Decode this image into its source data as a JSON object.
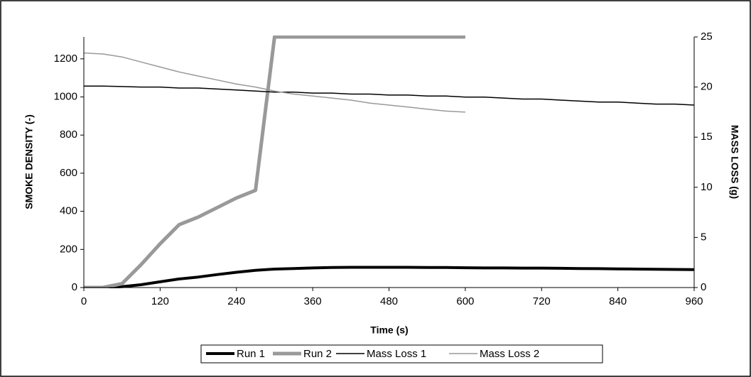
{
  "chart_data": {
    "type": "line",
    "xlabel": "Time (s)",
    "ylabel": "SMOKE DENSITY (-)",
    "y2label": "MASS LOSS (g)",
    "x": [
      0,
      30,
      60,
      90,
      120,
      150,
      180,
      210,
      240,
      270,
      300,
      330,
      360,
      390,
      420,
      450,
      480,
      510,
      540,
      570,
      600,
      630,
      660,
      690,
      720,
      750,
      780,
      810,
      840,
      870,
      900,
      930,
      960
    ],
    "series": [
      {
        "name": "Run 1",
        "color": "#000000",
        "width": 4,
        "values": [
          0,
          0,
          5,
          15,
          30,
          45,
          55,
          68,
          80,
          90,
          97,
          100,
          103,
          105,
          106,
          106,
          106,
          106,
          105,
          105,
          104,
          103,
          103,
          102,
          102,
          101,
          100,
          99,
          98,
          97,
          96,
          95,
          94
        ]
      },
      {
        "name": "Run 2",
        "color": "#999999",
        "width": 5,
        "values": [
          0,
          0,
          20,
          120,
          230,
          330,
          370,
          420,
          470,
          510,
          1315,
          1315,
          1315,
          1315,
          1315,
          1315,
          1315,
          1315,
          1315,
          1315,
          1315,
          null,
          null,
          null,
          null,
          null,
          null,
          null,
          null,
          null,
          null,
          null,
          null
        ]
      },
      {
        "name": "Mass Loss 1",
        "color": "#000000",
        "width": 1.5,
        "axis": "y2",
        "values": [
          20.1,
          20.1,
          20.05,
          20.0,
          20.0,
          19.9,
          19.9,
          19.8,
          19.7,
          19.6,
          19.5,
          19.5,
          19.4,
          19.4,
          19.3,
          19.3,
          19.2,
          19.2,
          19.1,
          19.1,
          19.0,
          19.0,
          18.9,
          18.8,
          18.8,
          18.7,
          18.6,
          18.5,
          18.5,
          18.4,
          18.3,
          18.3,
          18.2
        ]
      },
      {
        "name": "Mass Loss 2",
        "color": "#999999",
        "width": 1.5,
        "axis": "y2",
        "values": [
          23.4,
          23.3,
          23.0,
          22.5,
          22.0,
          21.5,
          21.1,
          20.7,
          20.3,
          20.0,
          19.6,
          19.3,
          19.1,
          18.9,
          18.7,
          18.4,
          18.2,
          18.0,
          17.8,
          17.6,
          17.5,
          null,
          null,
          null,
          null,
          null,
          null,
          null,
          null,
          null,
          null,
          null,
          null
        ]
      }
    ],
    "xlim": [
      0,
      960
    ],
    "xticks": [
      0,
      120,
      240,
      360,
      480,
      600,
      720,
      840,
      960
    ],
    "ylim": [
      0,
      1315
    ],
    "yticks": [
      0,
      200,
      400,
      600,
      800,
      1000,
      1200
    ],
    "y2lim": [
      0,
      25
    ],
    "y2ticks": [
      0,
      5,
      10,
      15,
      20,
      25
    ],
    "legend": "bottom"
  }
}
